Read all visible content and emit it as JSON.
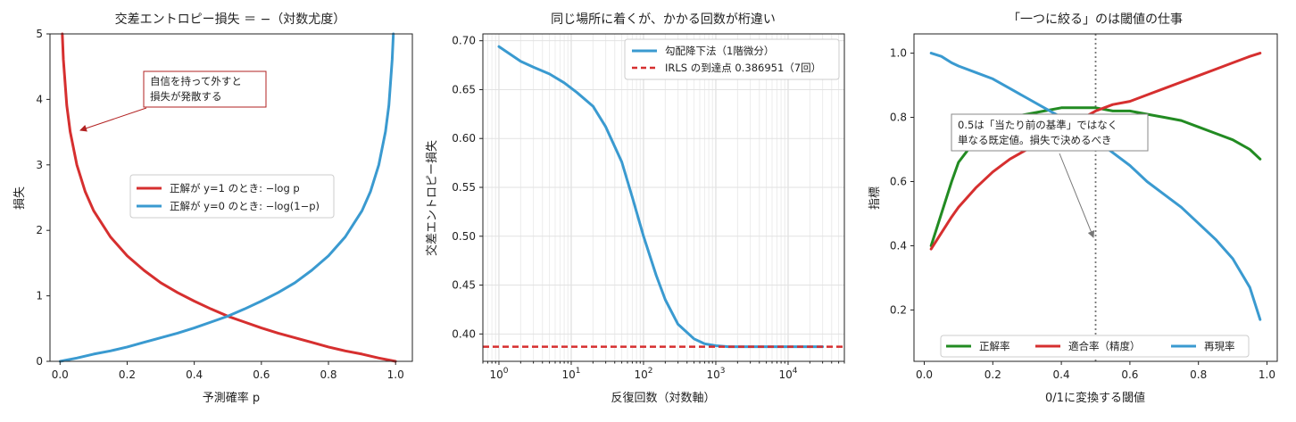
{
  "chart_data": [
    {
      "type": "line",
      "title": "交差エントロピー損失 ＝ −（対数尤度）",
      "xlabel": "予測確率 p",
      "ylabel": "損失",
      "xlim": [
        -0.03,
        1.05
      ],
      "ylim": [
        0,
        5
      ],
      "x_ticks": [
        "0.0",
        "0.2",
        "0.4",
        "0.6",
        "0.8",
        "1.0"
      ],
      "y_ticks": [
        "0",
        "1",
        "2",
        "3",
        "4",
        "5"
      ],
      "grid": false,
      "legend_position": "center",
      "series": [
        {
          "name": "正解が y=1 のとき: −log p",
          "color": "#d62f2f",
          "x": [
            0.0067,
            0.01,
            0.02,
            0.03,
            0.05,
            0.075,
            0.1,
            0.15,
            0.2,
            0.25,
            0.3,
            0.35,
            0.4,
            0.45,
            0.5,
            0.55,
            0.6,
            0.65,
            0.7,
            0.75,
            0.8,
            0.85,
            0.9,
            0.95,
            1.0
          ],
          "y": [
            5.0,
            4.61,
            3.91,
            3.51,
            3.0,
            2.59,
            2.3,
            1.9,
            1.61,
            1.39,
            1.2,
            1.05,
            0.92,
            0.8,
            0.69,
            0.6,
            0.51,
            0.43,
            0.36,
            0.29,
            0.22,
            0.16,
            0.11,
            0.05,
            0.0
          ]
        },
        {
          "name": "正解が y=0 のとき: −log(1−p)",
          "color": "#3a9ad0",
          "x": [
            0.0,
            0.05,
            0.1,
            0.15,
            0.2,
            0.25,
            0.3,
            0.35,
            0.4,
            0.45,
            0.5,
            0.55,
            0.6,
            0.65,
            0.7,
            0.75,
            0.8,
            0.85,
            0.9,
            0.925,
            0.95,
            0.97,
            0.98,
            0.99,
            0.9933
          ],
          "y": [
            0.0,
            0.05,
            0.11,
            0.16,
            0.22,
            0.29,
            0.36,
            0.43,
            0.51,
            0.6,
            0.69,
            0.8,
            0.92,
            1.05,
            1.2,
            1.39,
            1.61,
            1.9,
            2.3,
            2.59,
            3.0,
            3.51,
            3.91,
            4.61,
            5.0
          ]
        }
      ],
      "annotations": [
        {
          "text_lines": [
            "自信を持って外すと",
            "損失が発散する"
          ],
          "points_to": [
            0.03,
            3.5
          ],
          "color": "#b22222"
        }
      ]
    },
    {
      "type": "line",
      "title": "同じ場所に着くが、かかる回数が桁違い",
      "xlabel": "反復回数（対数軸）",
      "ylabel": "交差エントロピー損失",
      "x_scale": "log",
      "xlim": [
        0.6,
        60000
      ],
      "ylim": [
        0.372,
        0.707
      ],
      "x_ticks": [
        "10^0",
        "10^1",
        "10^2",
        "10^3",
        "10^4"
      ],
      "y_ticks": [
        "0.40",
        "0.45",
        "0.50",
        "0.55",
        "0.60",
        "0.65",
        "0.70"
      ],
      "grid": true,
      "legend_position": "upper right",
      "series": [
        {
          "name": "勾配降下法（1階微分）",
          "color": "#3a9ad0",
          "x": [
            1,
            2,
            3,
            5,
            8,
            12,
            20,
            30,
            50,
            70,
            100,
            150,
            200,
            300,
            500,
            700,
            1000,
            1500,
            2000,
            5000,
            10000,
            30000
          ],
          "y": [
            0.694,
            0.679,
            0.673,
            0.666,
            0.657,
            0.647,
            0.633,
            0.612,
            0.576,
            0.54,
            0.5,
            0.46,
            0.435,
            0.41,
            0.395,
            0.39,
            0.388,
            0.387,
            0.387,
            0.387,
            0.387,
            0.387
          ]
        },
        {
          "name": "IRLS の到達点 0.386951（7回）",
          "color": "#d62f2f",
          "style": "dashed",
          "y_const": 0.386951
        }
      ]
    },
    {
      "type": "line",
      "title": "「一つに絞る」のは閾値の仕事",
      "xlabel": "0/1に変換する閾値",
      "ylabel": "指標",
      "xlim": [
        -0.03,
        1.03
      ],
      "ylim": [
        0.04,
        1.06
      ],
      "x_ticks": [
        "0.0",
        "0.2",
        "0.4",
        "0.6",
        "0.8",
        "1.0"
      ],
      "y_ticks": [
        "0.2",
        "0.4",
        "0.6",
        "0.8",
        "1.0"
      ],
      "grid": false,
      "legend_position": "lower center",
      "vline": {
        "x": 0.5,
        "color": "#777777",
        "style": "dotted"
      },
      "series": [
        {
          "name": "正解率",
          "color": "#228b22",
          "x": [
            0.02,
            0.05,
            0.08,
            0.1,
            0.15,
            0.2,
            0.25,
            0.3,
            0.35,
            0.4,
            0.45,
            0.5,
            0.55,
            0.6,
            0.65,
            0.7,
            0.75,
            0.8,
            0.85,
            0.9,
            0.95,
            0.98
          ],
          "y": [
            0.4,
            0.5,
            0.6,
            0.66,
            0.73,
            0.77,
            0.8,
            0.81,
            0.82,
            0.83,
            0.83,
            0.83,
            0.82,
            0.82,
            0.81,
            0.8,
            0.79,
            0.77,
            0.75,
            0.73,
            0.7,
            0.67
          ]
        },
        {
          "name": "適合率（精度）",
          "color": "#d62f2f",
          "x": [
            0.02,
            0.05,
            0.08,
            0.1,
            0.15,
            0.2,
            0.25,
            0.3,
            0.35,
            0.4,
            0.45,
            0.5,
            0.55,
            0.6,
            0.65,
            0.7,
            0.75,
            0.8,
            0.85,
            0.9,
            0.95,
            0.98
          ],
          "y": [
            0.39,
            0.44,
            0.49,
            0.52,
            0.58,
            0.63,
            0.67,
            0.7,
            0.73,
            0.76,
            0.79,
            0.82,
            0.84,
            0.85,
            0.87,
            0.89,
            0.91,
            0.93,
            0.95,
            0.97,
            0.99,
            1.0
          ]
        },
        {
          "name": "再現率",
          "color": "#3a9ad0",
          "x": [
            0.02,
            0.05,
            0.08,
            0.1,
            0.15,
            0.2,
            0.25,
            0.3,
            0.35,
            0.4,
            0.45,
            0.5,
            0.55,
            0.6,
            0.65,
            0.7,
            0.75,
            0.8,
            0.85,
            0.9,
            0.95,
            0.98
          ],
          "y": [
            1.0,
            0.99,
            0.97,
            0.96,
            0.94,
            0.92,
            0.89,
            0.86,
            0.83,
            0.8,
            0.77,
            0.73,
            0.69,
            0.65,
            0.6,
            0.56,
            0.52,
            0.47,
            0.42,
            0.36,
            0.27,
            0.17
          ]
        }
      ],
      "annotations": [
        {
          "text_lines": [
            "0.5は「当たり前の基準」ではなく",
            "単なる既定値。損失で決めるべき"
          ],
          "points_to": [
            0.5,
            0.42
          ],
          "color": "#777777"
        }
      ]
    }
  ]
}
